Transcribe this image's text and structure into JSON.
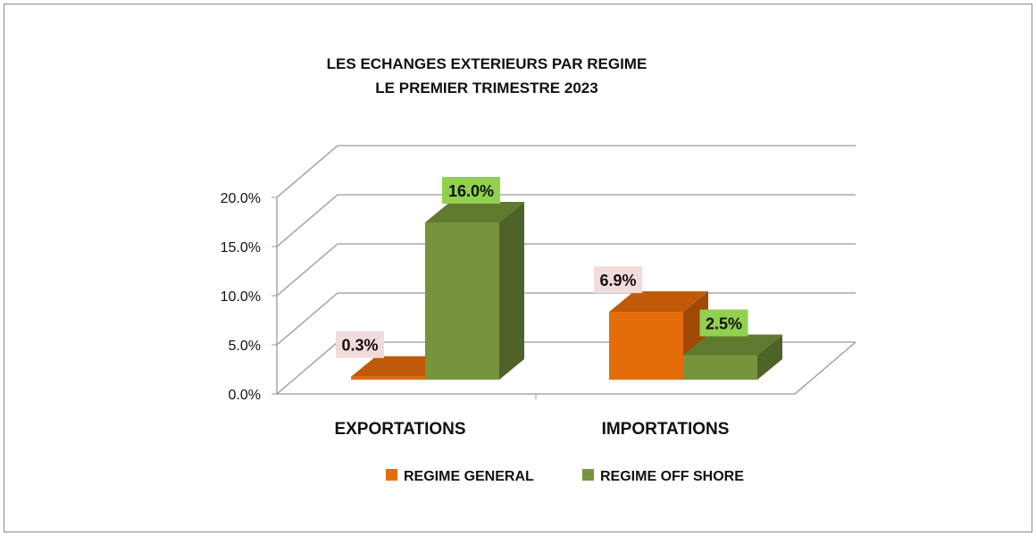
{
  "chart_data": {
    "type": "bar",
    "title": [
      "LES ECHANGES EXTERIEURS PAR REGIME",
      "LE PREMIER TRIMESTRE 2023"
    ],
    "categories": [
      "EXPORTATIONS",
      "IMPORTATIONS"
    ],
    "series": [
      {
        "name": "REGIME GENERAL",
        "values": [
          0.3,
          6.9
        ],
        "labels": [
          "0.3%",
          "6.9%"
        ],
        "color": "#e46c0a",
        "top": "#c05a08",
        "side": "#a04a06",
        "label_bg": "#f2dcdb"
      },
      {
        "name": "REGIME OFF SHORE",
        "values": [
          16.0,
          2.5
        ],
        "labels": [
          "16.0%",
          "2.5%"
        ],
        "color": "#77933c",
        "top": "#5f7a2e",
        "side": "#4f6228",
        "label_bg": "#92d050"
      }
    ],
    "yticks": [
      "0.0%",
      "5.0%",
      "10.0%",
      "15.0%",
      "20.0%"
    ],
    "ylim": [
      0,
      20
    ],
    "grid": true,
    "legend": "bottom"
  }
}
